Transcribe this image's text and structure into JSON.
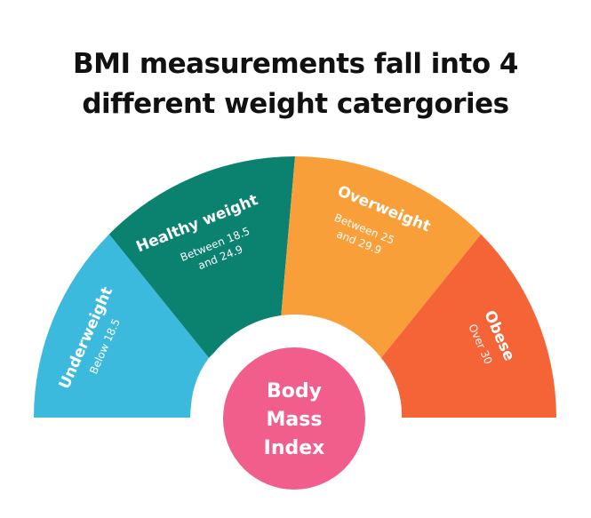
{
  "title": {
    "line1": "BMI measurements fall into 4",
    "line2": "different weight catergories"
  },
  "segments": [
    {
      "name": "Underweight",
      "desc1": "Below 18.5",
      "desc2": "",
      "color": "#3bbade"
    },
    {
      "name": "Healthy weight",
      "desc1": "Between 18.5",
      "desc2": "and 24.9",
      "color": "#0b8270"
    },
    {
      "name": "Overweight",
      "desc1": "Between 25",
      "desc2": "and 29.9",
      "color": "#f99f3a"
    },
    {
      "name": "Obese",
      "desc1": "Over 30",
      "desc2": "",
      "color": "#f56437"
    }
  ],
  "center": {
    "line1": "Body",
    "line2": "Mass",
    "line3": "Index",
    "color": "#f25e8c"
  }
}
